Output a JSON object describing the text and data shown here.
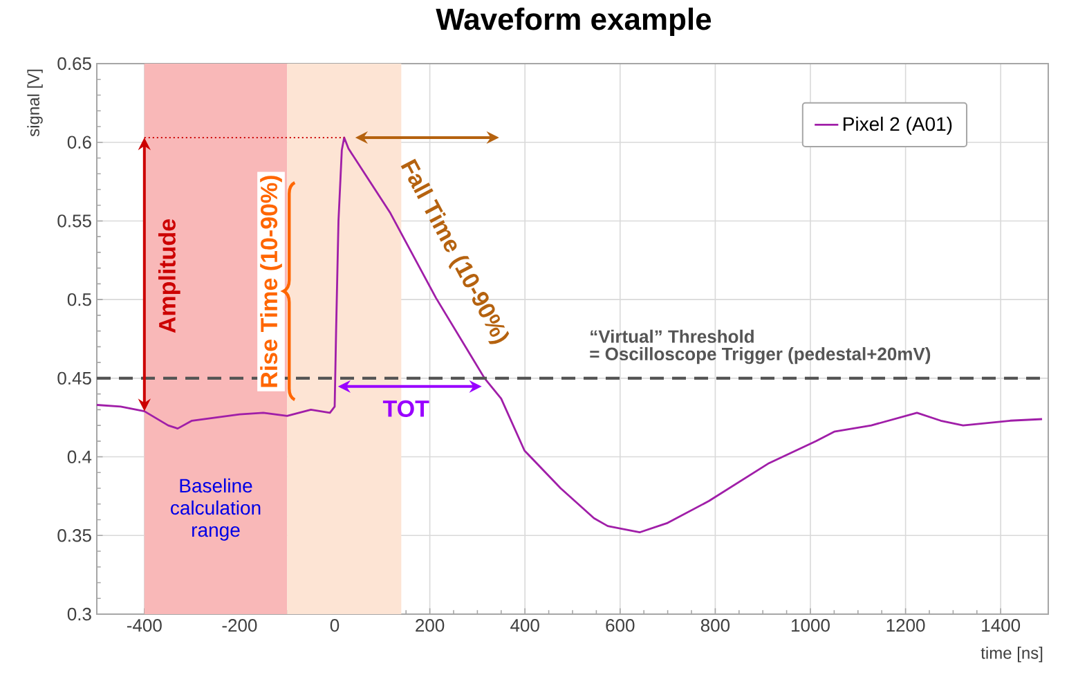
{
  "chart_data": {
    "type": "line",
    "title": "Waveform example",
    "xlabel": "time [ns]",
    "ylabel": "signal [V]",
    "xlim": [
      -500,
      1500
    ],
    "ylim": [
      0.3,
      0.65
    ],
    "xticks": [
      -400,
      -200,
      0,
      200,
      400,
      600,
      800,
      1000,
      1200,
      1400
    ],
    "yticks": [
      0.3,
      0.35,
      0.4,
      0.45,
      0.5,
      0.55,
      0.6,
      0.65
    ],
    "grid": true,
    "legend": "top right",
    "marker": "none",
    "line_style": "solid",
    "series": [
      {
        "name": "Pixel 2 (A01)",
        "color": "#a01ea8",
        "x": [
          -500,
          -450,
          -400,
          -350,
          -330,
          -300,
          -250,
          -200,
          -150,
          -100,
          -50,
          -10,
          0,
          3,
          8,
          15,
          20,
          29,
          117,
          213,
          283,
          315,
          350,
          399,
          475,
          545,
          574,
          641,
          700,
          787,
          913,
          1012,
          1050,
          1128,
          1224,
          1274,
          1321,
          1420,
          1487
        ],
        "values": [
          0.433,
          0.432,
          0.429,
          0.42,
          0.418,
          0.423,
          0.425,
          0.427,
          0.428,
          0.426,
          0.43,
          0.428,
          0.432,
          0.48,
          0.55,
          0.595,
          0.603,
          0.596,
          0.555,
          0.501,
          0.466,
          0.45,
          0.437,
          0.404,
          0.38,
          0.361,
          0.356,
          0.352,
          0.358,
          0.372,
          0.396,
          0.41,
          0.416,
          0.42,
          0.428,
          0.423,
          0.42,
          0.423,
          0.424
        ]
      }
    ],
    "ref_lines": [
      {
        "axis": "y",
        "value": 0.45,
        "label": "“Virtual” Threshold",
        "color": "#555555",
        "line_style": "dashed"
      }
    ],
    "bands": [
      {
        "axis": "x",
        "from": -400,
        "to": -100,
        "label": "Baseline calculation range",
        "color": "#f9b8b8"
      },
      {
        "axis": "x",
        "from": -100,
        "to": 140,
        "color": "#fde4d4"
      }
    ],
    "annotations": [
      {
        "text": "Amplitude",
        "x": -400,
        "y": 0.515
      },
      {
        "text": "Rise Time  (10-90%)",
        "x": 0,
        "y": 0.515
      },
      {
        "text": "Fall Time  (10-90%)",
        "x": 180,
        "y": 0.53
      },
      {
        "text": "TOT",
        "x": 150,
        "y": 0.45
      },
      "= Oscilloscope Trigger (pedestal+20mV)"
    ]
  }
}
